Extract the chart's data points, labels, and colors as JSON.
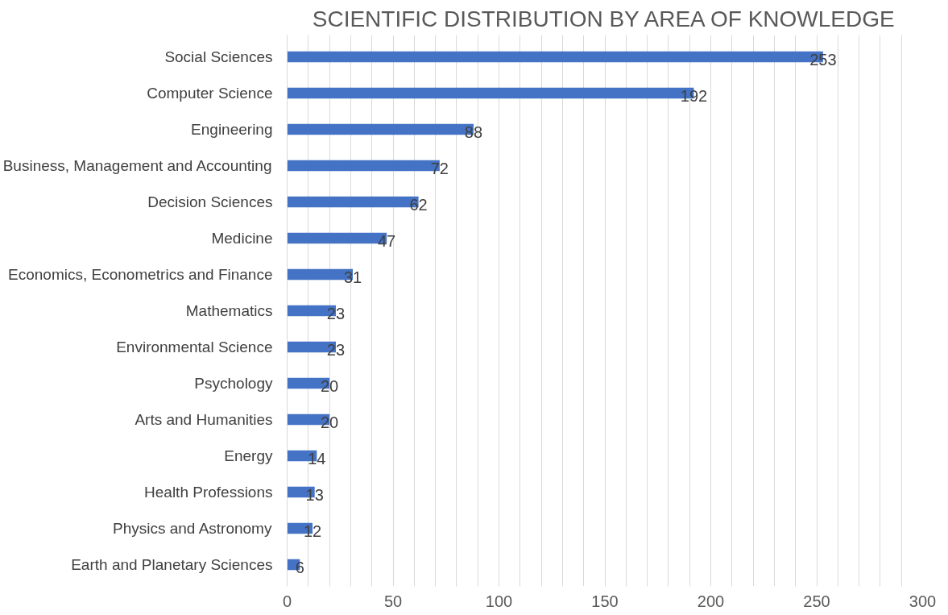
{
  "chart_data": {
    "type": "bar",
    "orientation": "horizontal",
    "title": "SCIENTIFIC DISTRIBUTION BY AREA OF KNOWLEDGE",
    "categories": [
      "Social Sciences",
      "Computer Science",
      "Engineering",
      "Business, Management and Accounting",
      "Decision Sciences",
      "Medicine",
      "Economics, Econometrics and Finance",
      "Mathematics",
      "Environmental Science",
      "Psychology",
      "Arts and Humanities",
      "Energy",
      "Health Professions",
      "Physics and Astronomy",
      "Earth and Planetary Sciences"
    ],
    "values": [
      253,
      192,
      88,
      72,
      62,
      47,
      31,
      23,
      23,
      20,
      20,
      14,
      13,
      12,
      6
    ],
    "color": "#4472c4",
    "data_labels": true,
    "xlim": [
      0,
      300
    ],
    "xticks": [
      0,
      {
        "value": 10,
        "label": null
      },
      {
        "value": 20,
        "label": null
      },
      {
        "value": 30,
        "label": null
      },
      {
        "value": 40,
        "label": null
      },
      50,
      {
        "value": 60,
        "label": null
      },
      {
        "value": 70,
        "label": null
      },
      {
        "value": 80,
        "label": null
      },
      {
        "value": 90,
        "label": null
      },
      100,
      {
        "value": 110,
        "label": null
      },
      {
        "value": 120,
        "label": null
      },
      {
        "value": 130,
        "label": null
      },
      {
        "value": 140,
        "label": null
      },
      150,
      {
        "value": 160,
        "label": null
      },
      {
        "value": 170,
        "label": null
      },
      {
        "value": 180,
        "label": null
      },
      {
        "value": 190,
        "label": null
      },
      200,
      {
        "value": 210,
        "label": null
      },
      {
        "value": 220,
        "label": null
      },
      {
        "value": 230,
        "label": null
      },
      {
        "value": 240,
        "label": null
      },
      250,
      {
        "value": 260,
        "label": null
      },
      {
        "value": 270,
        "label": null
      },
      {
        "value": 280,
        "label": null
      },
      {
        "value": 290,
        "label": null
      },
      300
    ],
    "grid": "x"
  }
}
